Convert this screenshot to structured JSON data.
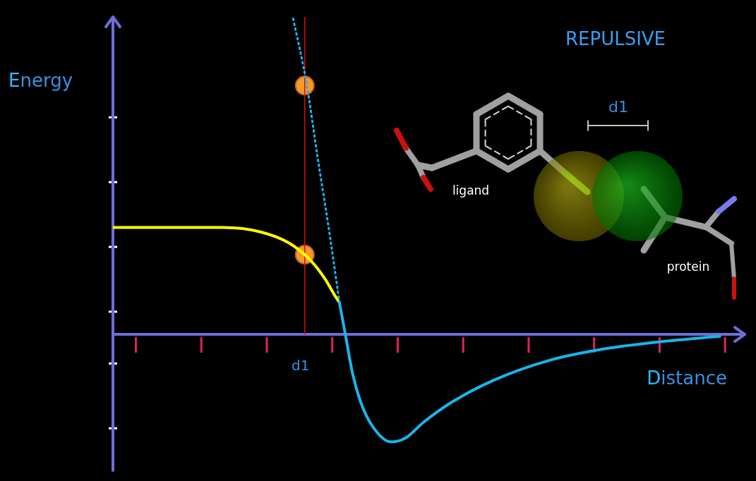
{
  "chart_data": {
    "type": "line",
    "x_label": "Distance",
    "y_label": "Energy",
    "xlim": [
      -0.35,
      9.3
    ],
    "ylim": [
      -2.1,
      4.9
    ],
    "xticks": [
      0,
      1,
      2,
      3,
      4,
      5,
      6,
      7,
      8,
      9
    ],
    "yticks": [
      -1.45,
      -0.45,
      0.35,
      1.35,
      2.35,
      3.35
    ],
    "tick_labels": false,
    "grid": false,
    "marker_label": "d1",
    "inset": {
      "title": "REPULSIVE",
      "ligand_label": "ligand",
      "protein_label": "protein",
      "distance_label": "d1"
    },
    "series": [
      {
        "color": "#1ab4ea",
        "line_style": "solid",
        "marker": "none",
        "x": [
          3.11,
          3.2,
          3.31,
          3.47,
          3.69,
          3.9,
          4.12,
          4.39,
          4.82,
          5.46,
          6.32,
          7.18,
          8.04,
          8.92
        ],
        "values": [
          0.49,
          0,
          -0.6,
          -1.14,
          -1.52,
          -1.66,
          -1.6,
          -1.36,
          -1.05,
          -0.71,
          -0.4,
          -0.22,
          -0.11,
          -0.03
        ]
      },
      {
        "color": "#1ab4ea",
        "line_style": "dotted",
        "marker": "none",
        "x": [
          3.11,
          2.94,
          2.77,
          2.61,
          2.4
        ],
        "values": [
          0.49,
          1.68,
          2.77,
          3.86,
          4.89
        ]
      },
      {
        "color": "#ffff00",
        "line_style": "solid",
        "marker": "none",
        "x": [
          -0.34,
          1.32,
          1.91,
          2.34,
          2.67,
          2.88,
          3.04,
          3.11
        ],
        "values": [
          1.65,
          1.65,
          1.58,
          1.41,
          1.14,
          0.87,
          0.6,
          0.49
        ]
      },
      {
        "color": "#d01010",
        "line_style": "solid",
        "marker": "none",
        "x": [
          2.58,
          2.58
        ],
        "values": [
          0,
          4.9
        ]
      },
      {
        "color": "#f39a2a",
        "line_style": "none",
        "marker": "circle",
        "x": [
          2.58,
          2.58
        ],
        "values": [
          3.84,
          1.23
        ]
      }
    ]
  }
}
